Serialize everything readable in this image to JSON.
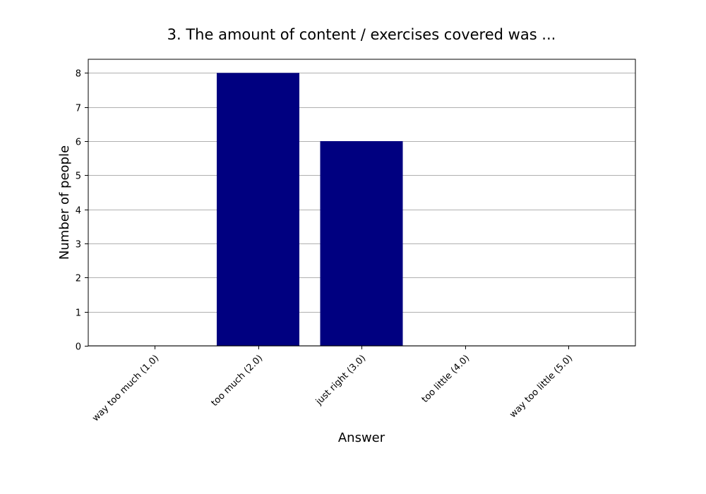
{
  "chart_data": {
    "type": "bar",
    "title": "3. The amount of content / exercises covered was ...",
    "xlabel": "Answer",
    "ylabel": "Number of people",
    "categories": [
      "way too much (1.0)",
      "too much (2.0)",
      "just right (3.0)",
      "too little (4.0)",
      "way too little (5.0)"
    ],
    "values": [
      0,
      8,
      6,
      0,
      0
    ],
    "ylim": [
      0,
      8.4
    ],
    "yticks": [
      0,
      1,
      2,
      3,
      4,
      5,
      6,
      7,
      8
    ],
    "grid": "horizontal",
    "bar_color": "#000080",
    "legend": "none"
  }
}
